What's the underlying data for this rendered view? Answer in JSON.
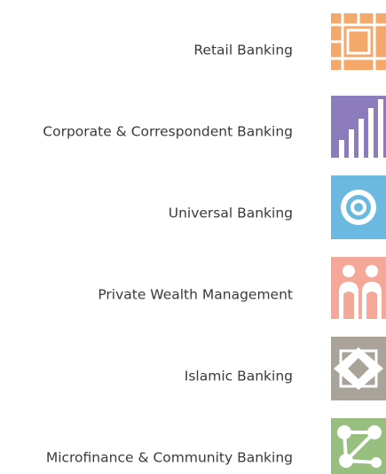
{
  "items": [
    {
      "label": "Retail Banking"
    },
    {
      "label": "Corporate & Correspondent Banking"
    },
    {
      "label": "Universal Banking"
    },
    {
      "label": "Private Wealth Management"
    },
    {
      "label": "Islamic Banking"
    },
    {
      "label": "Microfinance & Community Banking"
    }
  ]
}
